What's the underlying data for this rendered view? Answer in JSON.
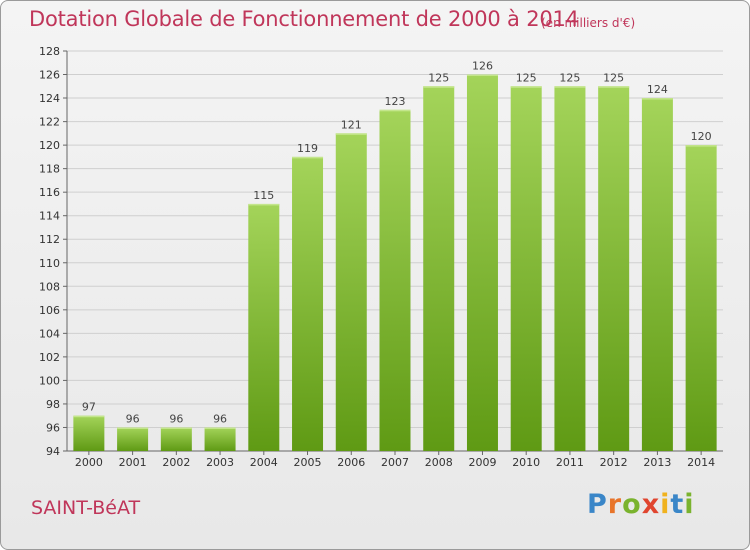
{
  "header": {
    "title": "Dotation Globale de Fonctionnement de 2000 à 2014",
    "subtitle": "(en milliers d'€)"
  },
  "footer": {
    "commune": "SAINT-BéAT",
    "logo": {
      "letters": [
        "P",
        "r",
        "o",
        "x",
        "i",
        "t",
        "i"
      ],
      "colors": [
        "#3a86c8",
        "#e8742a",
        "#7ab32e",
        "#e0452f",
        "#f0b21e",
        "#3a86c8",
        "#7ab32e"
      ]
    }
  },
  "chart_data": {
    "type": "bar",
    "categories": [
      "2000",
      "2001",
      "2002",
      "2003",
      "2004",
      "2005",
      "2006",
      "2007",
      "2008",
      "2009",
      "2010",
      "2011",
      "2012",
      "2013",
      "2014"
    ],
    "values": [
      97,
      96,
      96,
      96,
      115,
      119,
      121,
      123,
      125,
      126,
      125,
      125,
      125,
      124,
      120
    ],
    "data_labels": [
      "97",
      "96",
      "96",
      "96",
      "115",
      "119",
      "121",
      "123",
      "125",
      "126",
      "125",
      "125",
      "125",
      "124",
      "120"
    ],
    "ylim": [
      94,
      128
    ],
    "yticks": [
      94,
      96,
      98,
      100,
      102,
      104,
      106,
      108,
      110,
      112,
      114,
      116,
      118,
      120,
      122,
      124,
      126,
      128
    ],
    "grid": true,
    "bar_color_top": "#a4d45a",
    "bar_color_bottom": "#5f9a14",
    "title_color": "#c0365a"
  }
}
